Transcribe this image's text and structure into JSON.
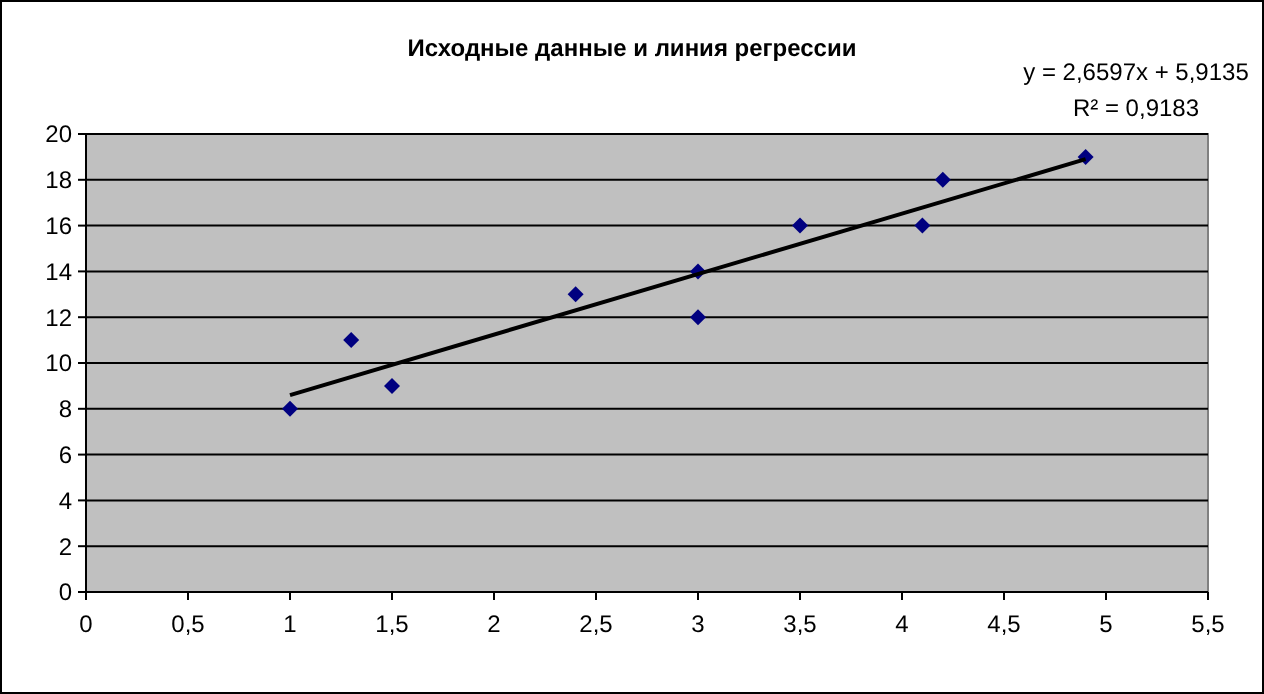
{
  "chart_data": {
    "type": "scatter",
    "title": "Исходные данные и линия регрессии",
    "annotations": [
      "y = 2,6597x + 5,9135",
      "R² = 0,9183"
    ],
    "series": [
      {
        "color": "#000080",
        "marker": "diamond",
        "x": [
          1,
          1.3,
          1.5,
          2.4,
          3,
          3,
          3.5,
          4.1,
          4.2,
          4.9
        ],
        "values": [
          8,
          11,
          9,
          13,
          14,
          12,
          16,
          16,
          18,
          19
        ]
      },
      {
        "type": "line",
        "color": "#000000",
        "marker": "none",
        "line_style": "solid",
        "x": [
          1,
          4.9
        ],
        "values": [
          8.6,
          18.9
        ]
      }
    ],
    "xlim": [
      0,
      5.5
    ],
    "xticks": [
      0,
      {
        "value": 0.5,
        "label": "0,5"
      },
      1,
      {
        "value": 1.5,
        "label": "1,5"
      },
      2,
      {
        "value": 2.5,
        "label": "2,5"
      },
      3,
      {
        "value": 3.5,
        "label": "3,5"
      },
      4,
      {
        "value": 4.5,
        "label": "4,5"
      },
      5,
      {
        "value": 5.5,
        "label": "5,5"
      }
    ],
    "ylim": [
      0,
      20
    ],
    "yticks": [
      0,
      2,
      4,
      6,
      8,
      10,
      12,
      14,
      16,
      18,
      20
    ],
    "grid": "y"
  }
}
